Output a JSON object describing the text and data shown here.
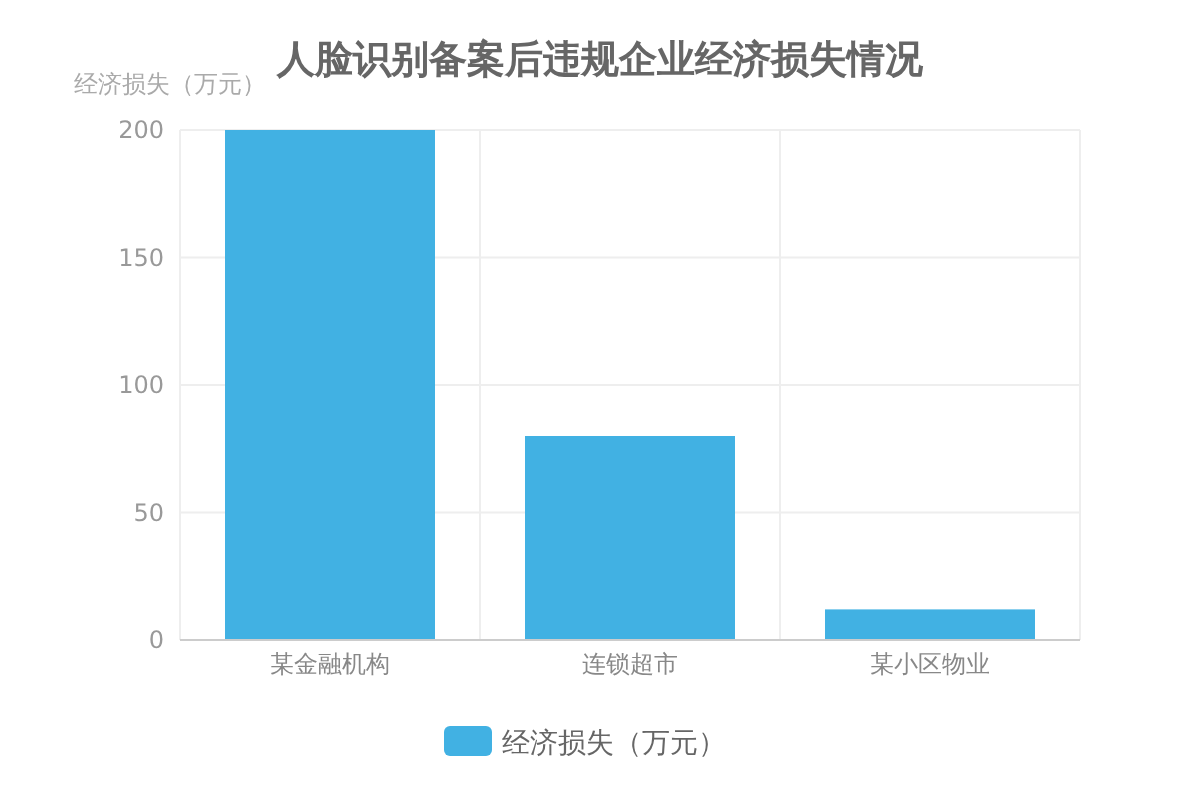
{
  "chart_data": {
    "type": "bar",
    "title": "人脸识别备案后违规企业经济损失情况",
    "ylabel": "经济损失（万元）",
    "categories": [
      "某金融机构",
      "连锁超市",
      "某小区物业"
    ],
    "series": [
      {
        "name": "经济损失（万元）",
        "color": "#41b1e3",
        "values": [
          200,
          80,
          12
        ]
      }
    ],
    "ylim": [
      0,
      200
    ],
    "yticks": [
      0,
      50,
      100,
      150,
      200
    ],
    "grid": true,
    "legend": "bottom"
  }
}
